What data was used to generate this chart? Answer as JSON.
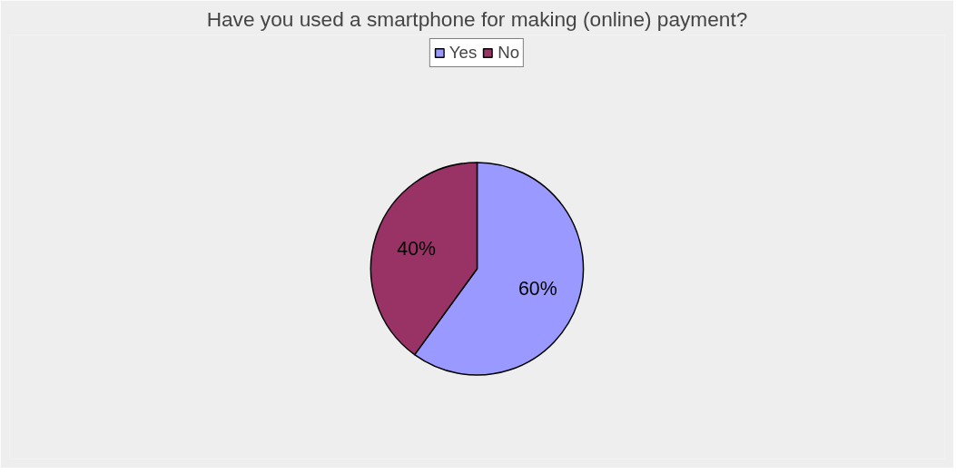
{
  "chart_data": {
    "type": "pie",
    "title": "Have you used a smartphone for making (online) payment?",
    "categories": [
      "Yes",
      "No"
    ],
    "values": [
      60,
      40
    ],
    "colors": [
      "#9999ff",
      "#993366"
    ],
    "value_labels": [
      "60%",
      "40%"
    ],
    "legend": "top"
  }
}
